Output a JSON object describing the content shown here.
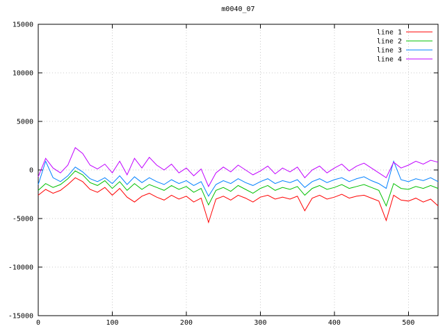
{
  "chart_data": {
    "type": "line",
    "title": "m0040_07",
    "xlabel": "",
    "ylabel": "",
    "xlim": [
      0,
      540
    ],
    "ylim": [
      -15000,
      15000
    ],
    "xticks": [
      0,
      100,
      200,
      300,
      400,
      500
    ],
    "yticks": [
      -15000,
      -10000,
      -5000,
      0,
      5000,
      10000,
      15000
    ],
    "grid": true,
    "grid_color": "#c8c8c8",
    "border_color": "#000000",
    "legend_position": "top-right",
    "x": [
      0,
      10,
      20,
      30,
      40,
      50,
      60,
      70,
      80,
      90,
      100,
      110,
      120,
      130,
      140,
      150,
      160,
      170,
      180,
      190,
      200,
      210,
      220,
      230,
      240,
      250,
      260,
      270,
      280,
      290,
      300,
      310,
      320,
      330,
      340,
      350,
      360,
      370,
      380,
      390,
      400,
      410,
      420,
      430,
      440,
      450,
      460,
      470,
      480,
      490,
      500,
      510,
      520,
      530,
      540
    ],
    "series": [
      {
        "name": "line 1",
        "color": "#ff0000",
        "values": [
          -2600,
          -2000,
          -2400,
          -2100,
          -1500,
          -800,
          -1200,
          -2000,
          -2300,
          -1800,
          -2600,
          -1900,
          -2800,
          -3300,
          -2700,
          -2400,
          -2800,
          -3100,
          -2600,
          -3000,
          -2700,
          -3300,
          -2900,
          -5400,
          -3000,
          -2700,
          -3100,
          -2600,
          -2900,
          -3300,
          -2800,
          -2600,
          -3000,
          -2800,
          -3000,
          -2700,
          -4200,
          -2900,
          -2600,
          -3000,
          -2800,
          -2500,
          -2900,
          -2700,
          -2600,
          -2900,
          -3200,
          -5200,
          -2600,
          -3100,
          -3200,
          -2900,
          -3300,
          -3000,
          -3700
        ]
      },
      {
        "name": "line 2",
        "color": "#00c000",
        "values": [
          -2100,
          -1400,
          -1800,
          -1500,
          -900,
          -100,
          -500,
          -1300,
          -1600,
          -1100,
          -1900,
          -1200,
          -2100,
          -1400,
          -2000,
          -1500,
          -1800,
          -2100,
          -1600,
          -2000,
          -1700,
          -2300,
          -1900,
          -3600,
          -2100,
          -1800,
          -2200,
          -1600,
          -2000,
          -2400,
          -1900,
          -1600,
          -2100,
          -1800,
          -2000,
          -1700,
          -2600,
          -1900,
          -1600,
          -2000,
          -1800,
          -1500,
          -1900,
          -1700,
          -1500,
          -1800,
          -2100,
          -3700,
          -1400,
          -1900,
          -2000,
          -1700,
          -1900,
          -1600,
          -1900
        ]
      },
      {
        "name": "line 3",
        "color": "#0080ff",
        "values": [
          -1500,
          900,
          -800,
          -1200,
          -600,
          300,
          -200,
          -900,
          -1200,
          -800,
          -1400,
          -600,
          -1500,
          -700,
          -1300,
          -800,
          -1200,
          -1500,
          -1000,
          -1400,
          -1100,
          -1600,
          -1200,
          -2700,
          -1500,
          -1100,
          -1400,
          -900,
          -1300,
          -1600,
          -1200,
          -900,
          -1400,
          -1100,
          -1300,
          -1000,
          -1800,
          -1200,
          -900,
          -1300,
          -1000,
          -800,
          -1200,
          -900,
          -700,
          -1100,
          -1400,
          -1900,
          900,
          -1000,
          -1200,
          -900,
          -1100,
          -800,
          -1200
        ]
      },
      {
        "name": "line 4",
        "color": "#c000ff",
        "values": [
          -700,
          1200,
          200,
          -300,
          500,
          2300,
          1700,
          500,
          100,
          600,
          -300,
          900,
          -500,
          1200,
          200,
          1300,
          500,
          0,
          600,
          -300,
          200,
          -600,
          100,
          -1700,
          -300,
          300,
          -200,
          500,
          0,
          -500,
          -100,
          400,
          -400,
          200,
          -200,
          300,
          -800,
          0,
          400,
          -300,
          200,
          600,
          -100,
          400,
          700,
          200,
          -300,
          -800,
          800,
          200,
          500,
          900,
          600,
          1000,
          800
        ]
      }
    ]
  }
}
